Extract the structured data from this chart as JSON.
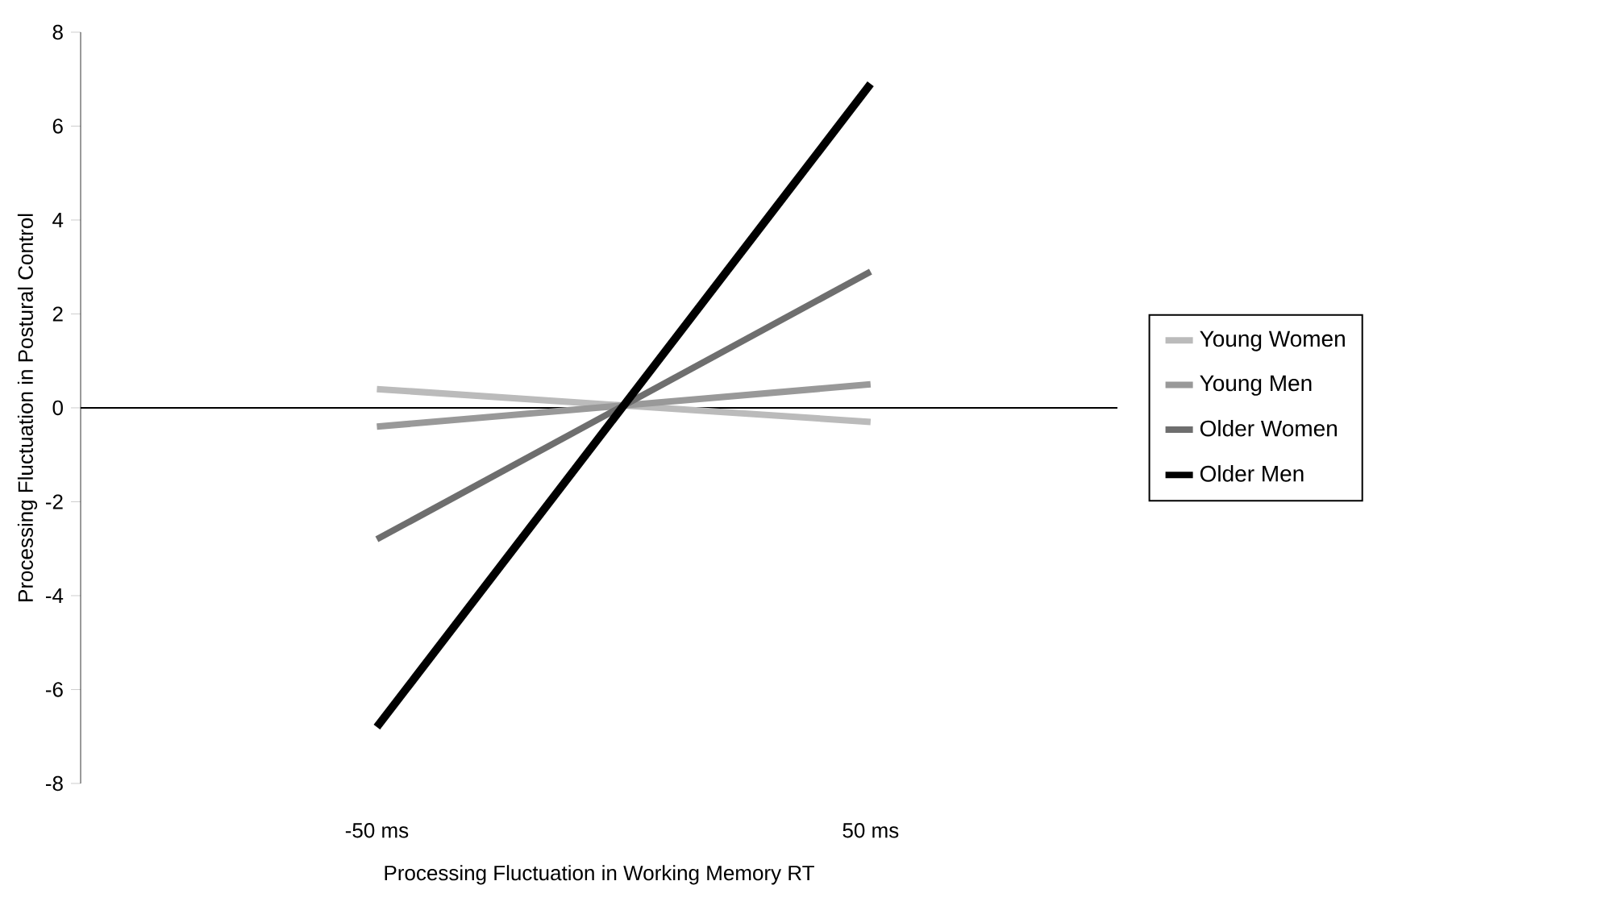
{
  "chart_data": {
    "type": "line",
    "xlabel": "Processing Fluctuation in Working Memory RT",
    "ylabel": "Processing Fluctuation in Postural Control",
    "x": [
      -50,
      50
    ],
    "xlim": [
      -110,
      100
    ],
    "xticks": [
      {
        "value": -50,
        "label": "-50 ms"
      },
      {
        "value": 50,
        "label": "50 ms"
      }
    ],
    "ylim": [
      -8,
      8
    ],
    "yticks": [
      -8,
      -6,
      -4,
      -2,
      0,
      2,
      4,
      6,
      8
    ],
    "series": [
      {
        "name": "Young Women",
        "color": "#bbbbbb",
        "values": [
          0.4,
          -0.3
        ]
      },
      {
        "name": "Young Men",
        "color": "#999999",
        "values": [
          -0.4,
          0.5
        ]
      },
      {
        "name": "Older Women",
        "color": "#6e6e6e",
        "values": [
          -2.8,
          2.9
        ]
      },
      {
        "name": "Older Men",
        "color": "#000000",
        "values": [
          -6.8,
          6.9
        ]
      }
    ],
    "ref_lines": [
      {
        "axis": "y",
        "value": 0
      }
    ],
    "legend": "right",
    "marker": "none",
    "grid": false
  }
}
